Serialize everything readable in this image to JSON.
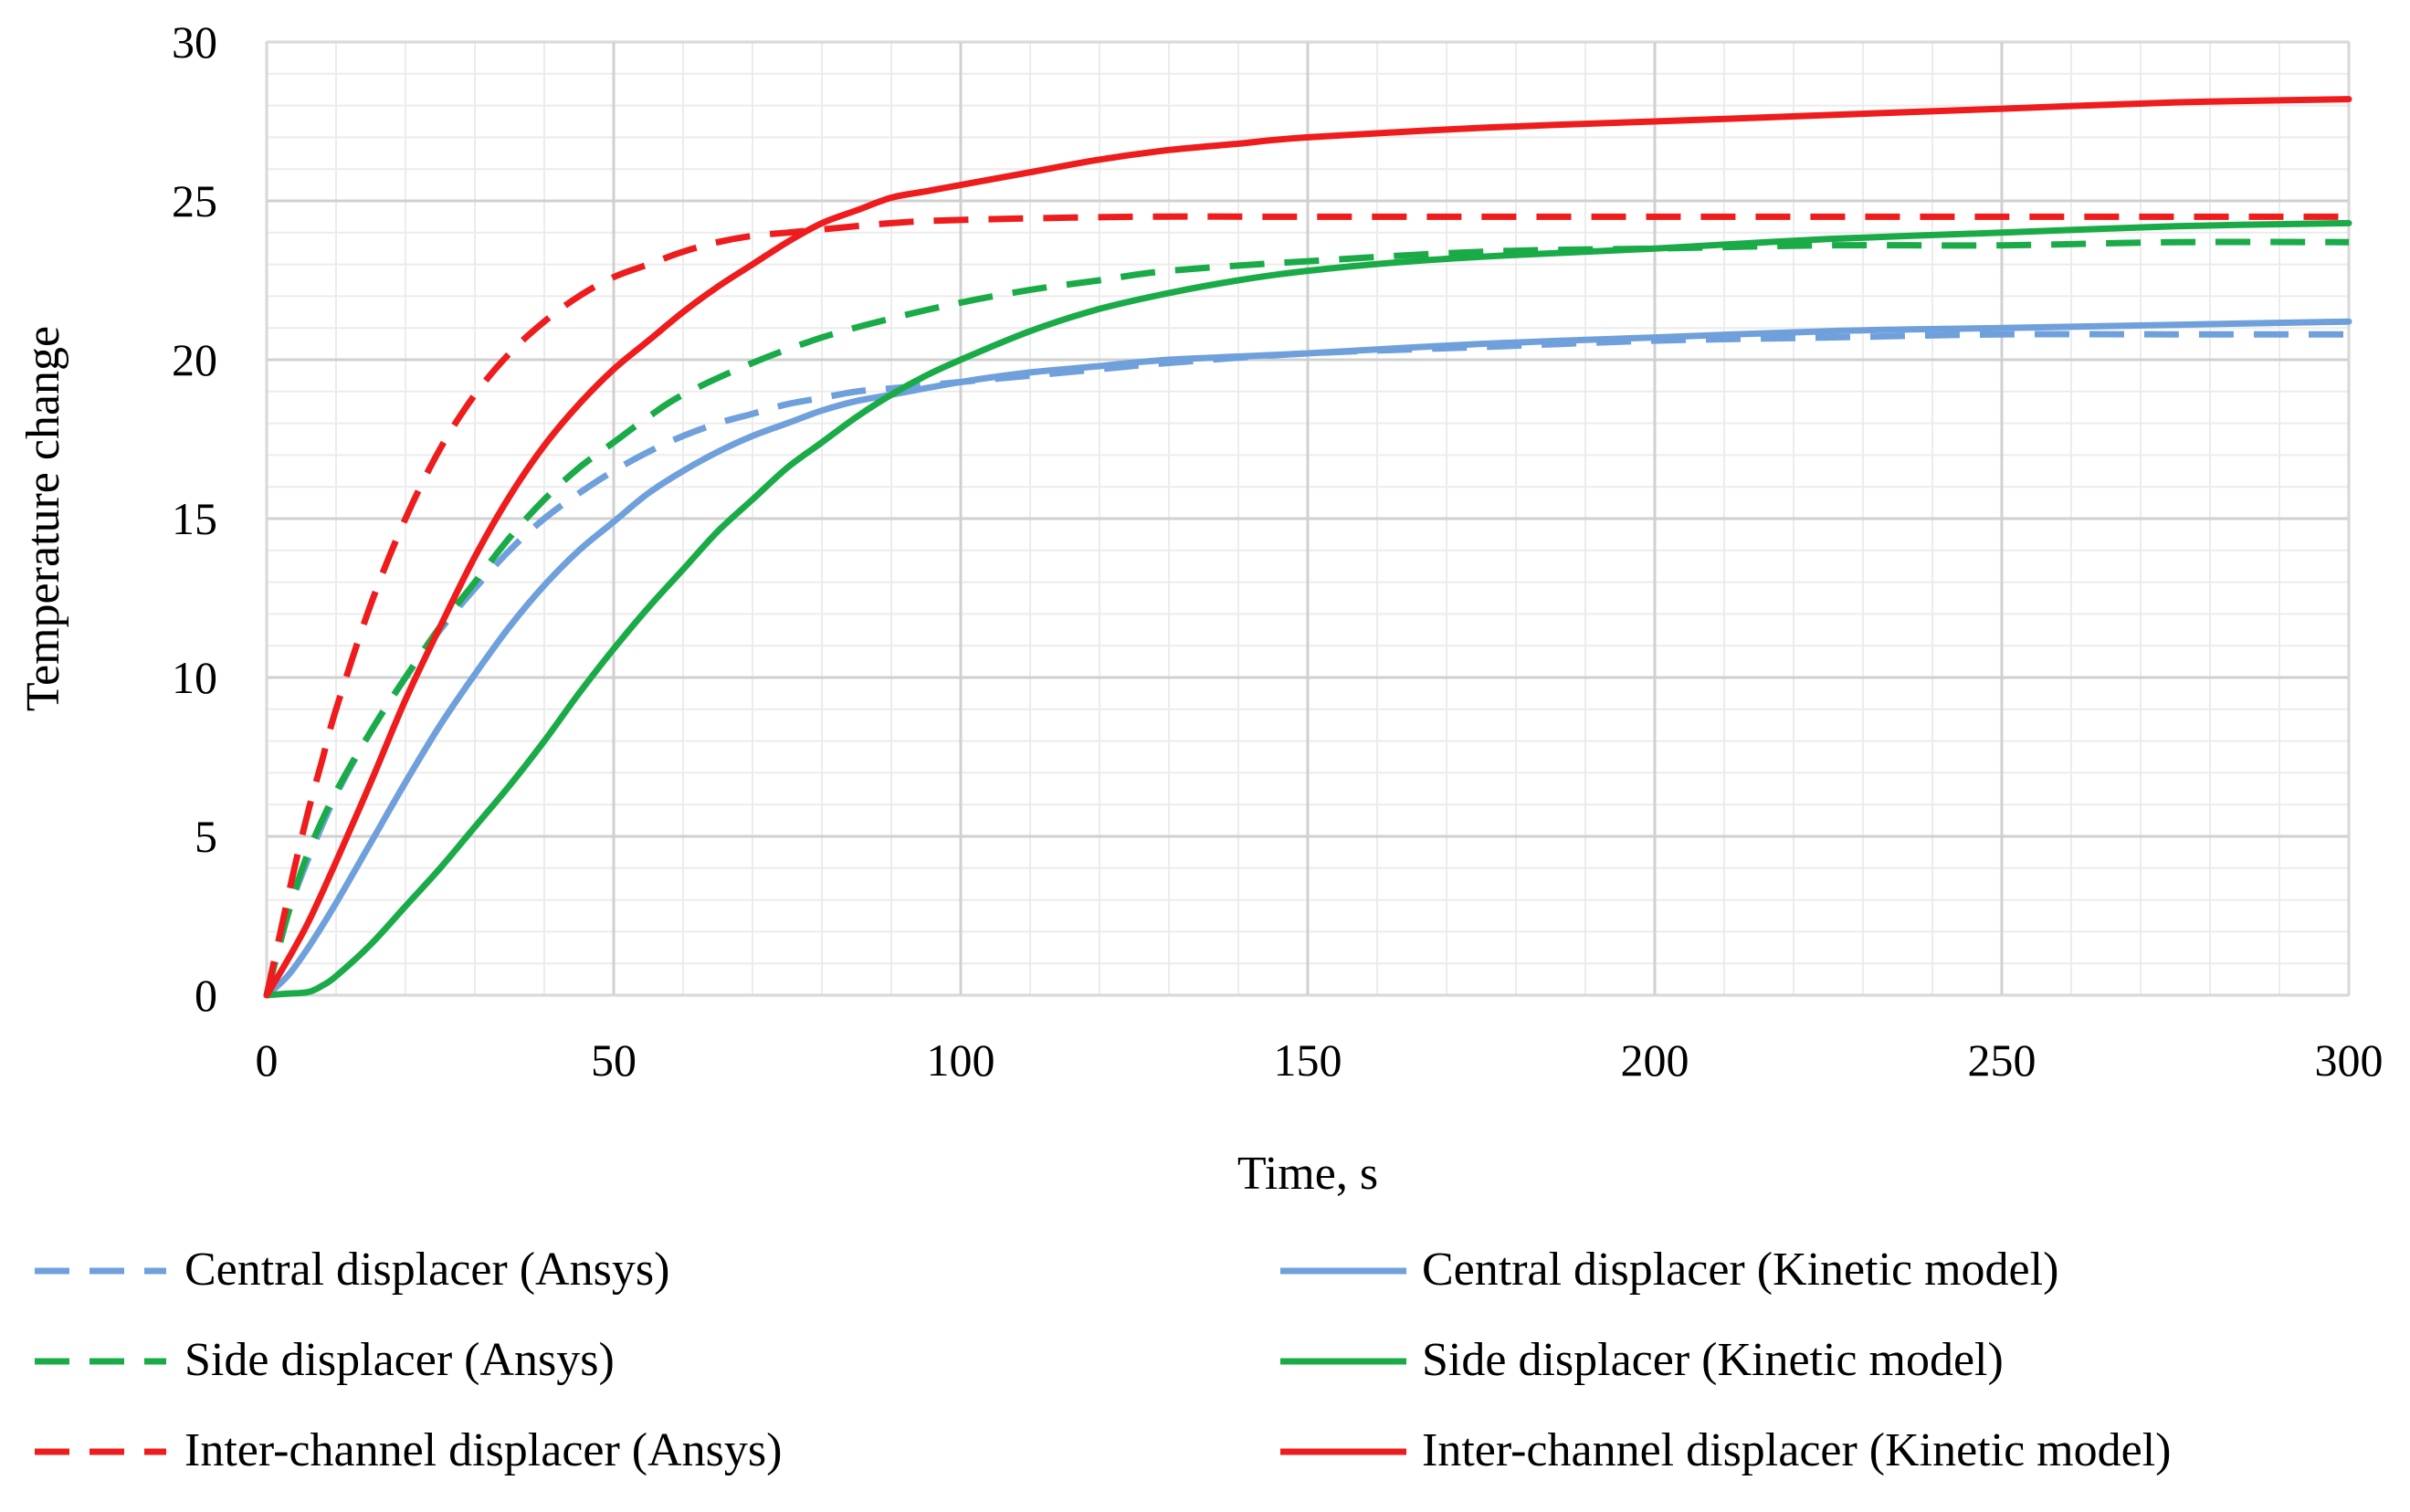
{
  "chart_data": {
    "type": "line",
    "xlabel": "Time, s",
    "ylabel": "Temperature change",
    "xlim": [
      0,
      300
    ],
    "ylim": [
      0,
      30
    ],
    "xticks": [
      0,
      50,
      100,
      150,
      200,
      250,
      300
    ],
    "yticks": [
      0,
      5,
      10,
      15,
      20,
      25,
      30
    ],
    "x_minor_step": 10,
    "y_minor_step": 1,
    "grid": true,
    "legend_position": "bottom",
    "series": [
      {
        "name": "Central displacer (Ansys)",
        "color": "#6fa0dc",
        "style": "dashed",
        "points": [
          [
            0,
            0
          ],
          [
            3,
            2.5
          ],
          [
            6,
            4.3
          ],
          [
            10,
            6.3
          ],
          [
            15,
            8.3
          ],
          [
            20,
            10.0
          ],
          [
            25,
            11.5
          ],
          [
            30,
            12.8
          ],
          [
            35,
            14.0
          ],
          [
            40,
            15.0
          ],
          [
            45,
            15.8
          ],
          [
            50,
            16.5
          ],
          [
            55,
            17.1
          ],
          [
            60,
            17.6
          ],
          [
            65,
            18.0
          ],
          [
            70,
            18.3
          ],
          [
            75,
            18.6
          ],
          [
            80,
            18.8
          ],
          [
            85,
            19.0
          ],
          [
            90,
            19.1
          ],
          [
            100,
            19.3
          ],
          [
            110,
            19.5
          ],
          [
            120,
            19.7
          ],
          [
            130,
            19.9
          ],
          [
            150,
            20.2
          ],
          [
            175,
            20.4
          ],
          [
            200,
            20.6
          ],
          [
            225,
            20.7
          ],
          [
            250,
            20.8
          ],
          [
            275,
            20.8
          ],
          [
            300,
            20.8
          ]
        ]
      },
      {
        "name": "Central displacer (Kinetic model)",
        "color": "#6fa0dc",
        "style": "solid",
        "points": [
          [
            0,
            0
          ],
          [
            3,
            0.6
          ],
          [
            6,
            1.5
          ],
          [
            10,
            2.9
          ],
          [
            15,
            4.8
          ],
          [
            20,
            6.7
          ],
          [
            25,
            8.5
          ],
          [
            30,
            10.1
          ],
          [
            35,
            11.6
          ],
          [
            40,
            12.9
          ],
          [
            45,
            14.0
          ],
          [
            50,
            14.9
          ],
          [
            55,
            15.8
          ],
          [
            60,
            16.5
          ],
          [
            65,
            17.1
          ],
          [
            70,
            17.6
          ],
          [
            75,
            18.0
          ],
          [
            80,
            18.4
          ],
          [
            85,
            18.7
          ],
          [
            90,
            18.9
          ],
          [
            100,
            19.3
          ],
          [
            110,
            19.6
          ],
          [
            120,
            19.8
          ],
          [
            130,
            20.0
          ],
          [
            150,
            20.2
          ],
          [
            175,
            20.5
          ],
          [
            200,
            20.7
          ],
          [
            225,
            20.9
          ],
          [
            250,
            21.0
          ],
          [
            275,
            21.1
          ],
          [
            300,
            21.2
          ]
        ]
      },
      {
        "name": "Side displacer (Ansys)",
        "color": "#1aab48",
        "style": "dashed",
        "points": [
          [
            0,
            0
          ],
          [
            3,
            2.5
          ],
          [
            6,
            4.5
          ],
          [
            10,
            6.4
          ],
          [
            15,
            8.3
          ],
          [
            20,
            10.0
          ],
          [
            25,
            11.6
          ],
          [
            30,
            13.0
          ],
          [
            35,
            14.4
          ],
          [
            40,
            15.6
          ],
          [
            45,
            16.6
          ],
          [
            50,
            17.4
          ],
          [
            55,
            18.2
          ],
          [
            60,
            18.9
          ],
          [
            70,
            19.9
          ],
          [
            80,
            20.7
          ],
          [
            90,
            21.3
          ],
          [
            100,
            21.8
          ],
          [
            110,
            22.2
          ],
          [
            120,
            22.5
          ],
          [
            130,
            22.8
          ],
          [
            150,
            23.1
          ],
          [
            175,
            23.4
          ],
          [
            200,
            23.5
          ],
          [
            225,
            23.6
          ],
          [
            250,
            23.6
          ],
          [
            275,
            23.7
          ],
          [
            300,
            23.7
          ]
        ]
      },
      {
        "name": "Side displacer (Kinetic model)",
        "color": "#1aab48",
        "style": "solid",
        "points": [
          [
            0,
            0
          ],
          [
            3,
            0.05
          ],
          [
            6,
            0.1
          ],
          [
            8,
            0.3
          ],
          [
            10,
            0.6
          ],
          [
            15,
            1.6
          ],
          [
            20,
            2.8
          ],
          [
            25,
            4.0
          ],
          [
            30,
            5.3
          ],
          [
            35,
            6.6
          ],
          [
            40,
            8.0
          ],
          [
            45,
            9.5
          ],
          [
            50,
            10.9
          ],
          [
            55,
            12.2
          ],
          [
            60,
            13.4
          ],
          [
            65,
            14.6
          ],
          [
            70,
            15.6
          ],
          [
            75,
            16.6
          ],
          [
            80,
            17.4
          ],
          [
            85,
            18.2
          ],
          [
            90,
            18.9
          ],
          [
            95,
            19.5
          ],
          [
            100,
            20.0
          ],
          [
            110,
            20.9
          ],
          [
            120,
            21.6
          ],
          [
            130,
            22.1
          ],
          [
            140,
            22.5
          ],
          [
            150,
            22.8
          ],
          [
            165,
            23.1
          ],
          [
            180,
            23.3
          ],
          [
            200,
            23.5
          ],
          [
            225,
            23.8
          ],
          [
            250,
            24.0
          ],
          [
            275,
            24.2
          ],
          [
            300,
            24.3
          ]
        ]
      },
      {
        "name": "Inter-channel displacer  (Ansys)",
        "color": "#ee1c1c",
        "style": "dashed",
        "points": [
          [
            0,
            0
          ],
          [
            2,
            2.0
          ],
          [
            4,
            4.0
          ],
          [
            6,
            5.8
          ],
          [
            8,
            7.4
          ],
          [
            10,
            9.0
          ],
          [
            15,
            12.3
          ],
          [
            20,
            15.0
          ],
          [
            25,
            17.2
          ],
          [
            30,
            18.9
          ],
          [
            35,
            20.2
          ],
          [
            40,
            21.2
          ],
          [
            45,
            22.0
          ],
          [
            50,
            22.6
          ],
          [
            55,
            23.0
          ],
          [
            60,
            23.4
          ],
          [
            65,
            23.7
          ],
          [
            70,
            23.9
          ],
          [
            75,
            24.0
          ],
          [
            80,
            24.1
          ],
          [
            90,
            24.3
          ],
          [
            100,
            24.4
          ],
          [
            125,
            24.5
          ],
          [
            150,
            24.5
          ],
          [
            200,
            24.5
          ],
          [
            250,
            24.5
          ],
          [
            300,
            24.5
          ]
        ]
      },
      {
        "name": "Inter-channel displacer (Kinetic model)",
        "color": "#ee1c1c",
        "style": "solid",
        "points": [
          [
            0,
            0
          ],
          [
            3,
            1.1
          ],
          [
            6,
            2.3
          ],
          [
            10,
            4.2
          ],
          [
            15,
            6.7
          ],
          [
            20,
            9.3
          ],
          [
            25,
            11.6
          ],
          [
            30,
            13.8
          ],
          [
            35,
            15.7
          ],
          [
            40,
            17.3
          ],
          [
            45,
            18.6
          ],
          [
            50,
            19.7
          ],
          [
            55,
            20.6
          ],
          [
            60,
            21.5
          ],
          [
            65,
            22.3
          ],
          [
            70,
            23.0
          ],
          [
            75,
            23.7
          ],
          [
            80,
            24.3
          ],
          [
            85,
            24.7
          ],
          [
            90,
            25.1
          ],
          [
            95,
            25.3
          ],
          [
            100,
            25.5
          ],
          [
            110,
            25.9
          ],
          [
            120,
            26.3
          ],
          [
            130,
            26.6
          ],
          [
            140,
            26.8
          ],
          [
            150,
            27.0
          ],
          [
            175,
            27.3
          ],
          [
            200,
            27.5
          ],
          [
            225,
            27.7
          ],
          [
            250,
            27.9
          ],
          [
            275,
            28.1
          ],
          [
            300,
            28.2
          ]
        ]
      }
    ]
  }
}
